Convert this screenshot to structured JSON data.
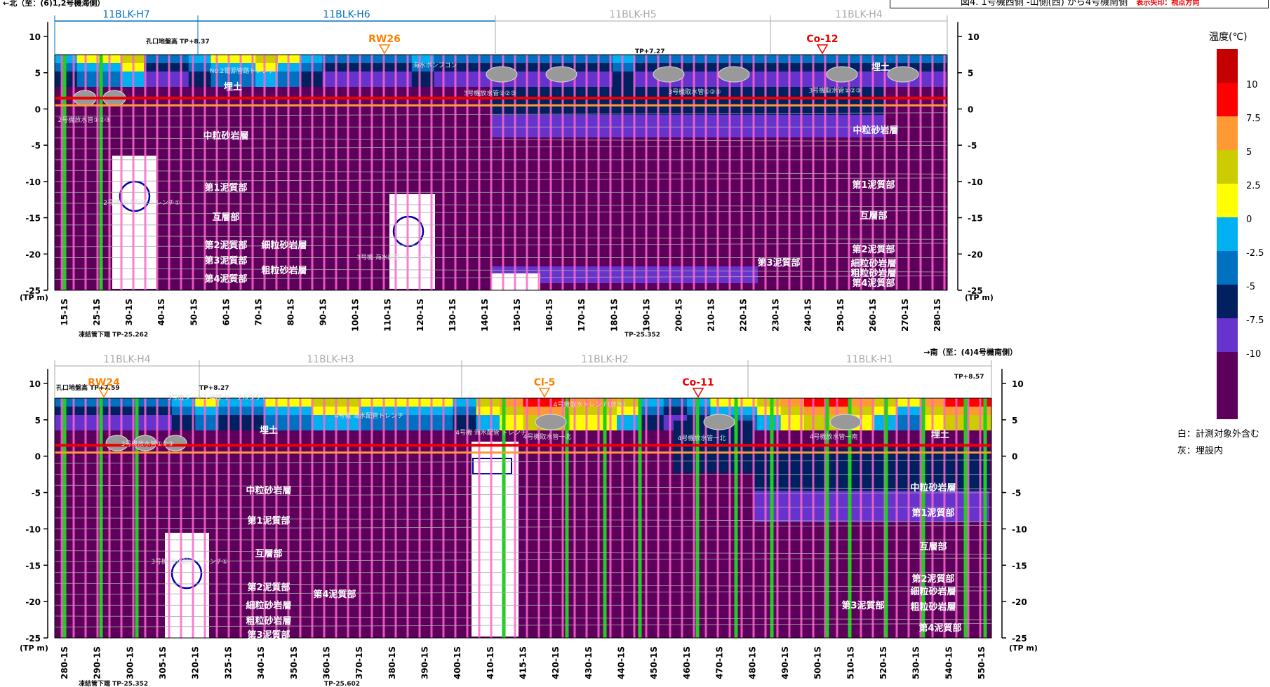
{
  "header": {
    "title": "図4. 1号機西側 -山側(西) から4号機南側",
    "subtitle": "表示矢印：視点方向"
  },
  "legend": {
    "title": "温度(℃)",
    "ticks": [
      "10",
      "7.5",
      "5",
      "2.5",
      "0",
      "-2.5",
      "-5",
      "-7.5",
      "-10"
    ],
    "colors": [
      "#c40000",
      "#ff0000",
      "#ff9933",
      "#cccc00",
      "#ffff00",
      "#00b0f0",
      "#0070c0",
      "#002060",
      "#6633cc",
      "#5c005c"
    ],
    "notes": [
      "白：計測対象外含む",
      "灰：埋設内"
    ]
  },
  "colors": {
    "ground": "#5c005c",
    "green_pipe": "#22cc22",
    "pink_pipe": "#ff66cc",
    "red_line": "#ee0000",
    "orange_line": "#ff9933",
    "blue_span": "#0070c0"
  },
  "chart_data": [
    {
      "type": "heatmap",
      "title": "",
      "direction_label": "←北（至：(6)1,2号機海側）",
      "y_unit_label": "(TP m)",
      "ylim": [
        -25,
        12
      ],
      "yticks": [
        10,
        5,
        0,
        -5,
        -10,
        -15,
        -20,
        -25
      ],
      "ytick_labels": [
        "10",
        "5",
        "0",
        "-5",
        "-10",
        "-15",
        "-20",
        "-25"
      ],
      "blocks": [
        {
          "name": "11BLK-H7",
          "active": true
        },
        {
          "name": "11BLK-H6",
          "active": true
        },
        {
          "name": "11BLK-H5",
          "active": false
        },
        {
          "name": "11BLK-H4",
          "active": false
        }
      ],
      "categories": [
        "15-1S",
        "25-1S",
        "30-1S",
        "40-1S",
        "50-1S",
        "60-1S",
        "70-1S",
        "80-1S",
        "90-1S",
        "100-1S",
        "110-1S",
        "120-1S",
        "130-1S",
        "140-1S",
        "150-1S",
        "160-1S",
        "170-1S",
        "180-1S",
        "190-1S",
        "200-1S",
        "210-1S",
        "220-1S",
        "230-1S",
        "240-1S",
        "250-1S",
        "260-1S",
        "270-1S",
        "280-1S"
      ],
      "markers": [
        {
          "label": "RW26",
          "color": "#ff8000"
        },
        {
          "label": "Co-12",
          "color": "#ee0000"
        }
      ],
      "tp_labels": [
        "孔口地盤高 TP+8.37",
        "TP+7.27",
        "凍結管下端 TP-25.262",
        "TP-25.352"
      ],
      "layer_labels": [
        "埋土",
        "中粒砂岩層",
        "第1泥質部",
        "互層部",
        "第2泥質部",
        "第3泥質部",
        "第4泥質部",
        "細粒砂岩層",
        "粗粒砂岩層",
        "中粒砂岩層",
        "第1泥質部",
        "互層部",
        "第2泥質部",
        "第3泥質部",
        "細粒砂岩層",
        "粗粒砂岩層",
        "第4泥質部",
        "埋土"
      ],
      "structure_labels": [
        "2号機放水管①②③",
        "2号機 海水配管 トレンチ①",
        "3号機 海水配管 トレンチ②",
        "No.2電源管路トレンチ",
        "3号機放水管①②③",
        "3号機取水管①②③",
        "3号機取水管①②③",
        "海水ポンプコン"
      ],
      "depth_lines": {
        "red_tp": 1.5,
        "orange_tp": 0.5
      }
    },
    {
      "type": "heatmap",
      "title": "",
      "direction_label": "→南（至：(4)4号機南側）",
      "y_unit_label": "(TP m)",
      "ylim": [
        -25,
        12
      ],
      "yticks": [
        10,
        5,
        0,
        -5,
        -10,
        -15,
        -20,
        -25
      ],
      "ytick_labels": [
        "10",
        "5",
        "0",
        "-5",
        "-10",
        "-15",
        "-20",
        "-25"
      ],
      "blocks": [
        {
          "name": "11BLK-H4",
          "active": false
        },
        {
          "name": "11BLK-H3",
          "active": false
        },
        {
          "name": "11BLK-H2",
          "active": false
        },
        {
          "name": "11BLK-H1",
          "active": false
        }
      ],
      "categories": [
        "280-1S",
        "290-1S",
        "300-1S",
        "305-1S",
        "320-1S",
        "325-1S",
        "340-1S",
        "350-1S",
        "360-1S",
        "370-1S",
        "380-1S",
        "390-1S",
        "400-1S",
        "410-1S",
        "415-1S",
        "420-1S",
        "430-1S",
        "440-1S",
        "450-1S",
        "460-1S",
        "470-1S",
        "480-1S",
        "490-1S",
        "500-1S",
        "510-1S",
        "520-1S",
        "530-1S",
        "540-1S",
        "550-1S"
      ],
      "markers": [
        {
          "label": "RW24",
          "color": "#ff8000"
        },
        {
          "label": "Cl-5",
          "color": "#ff8000"
        },
        {
          "label": "Co-11",
          "color": "#ee0000"
        }
      ],
      "tp_labels": [
        "孔口地盤高 TP+7.59",
        "TP+8.27",
        "TP+8.57",
        "凍結管下端 TP-25.352",
        "TP-25.602"
      ],
      "layer_labels": [
        "埋土",
        "中粒砂岩層",
        "第1泥質部",
        "互層部",
        "第2泥質部",
        "細粒砂岩層",
        "粗粒砂岩層",
        "第3泥質部",
        "第4泥質部",
        "埋土",
        "中粒砂岩層",
        "第1泥質部",
        "互層部",
        "第2泥質部",
        "細粒砂岩層",
        "第3泥質部",
        "粗粒砂岩層",
        "第4泥質部"
      ],
      "structure_labels": [
        "3号機放水管①②③",
        "3号機タービン建屋 ケーブルダクト",
        "4号機 海水配管トレンチ",
        "4号機 海水配管 トレンチ",
        "3号機 海水配管 トレンチ①",
        "4号機取水管一北",
        "4号機放水管一北",
        "4号機放水管一南",
        "4号機取水トレンチ(放水)"
      ],
      "depth_lines": {
        "red_tp": 1.5,
        "orange_tp": 0.5
      }
    }
  ]
}
